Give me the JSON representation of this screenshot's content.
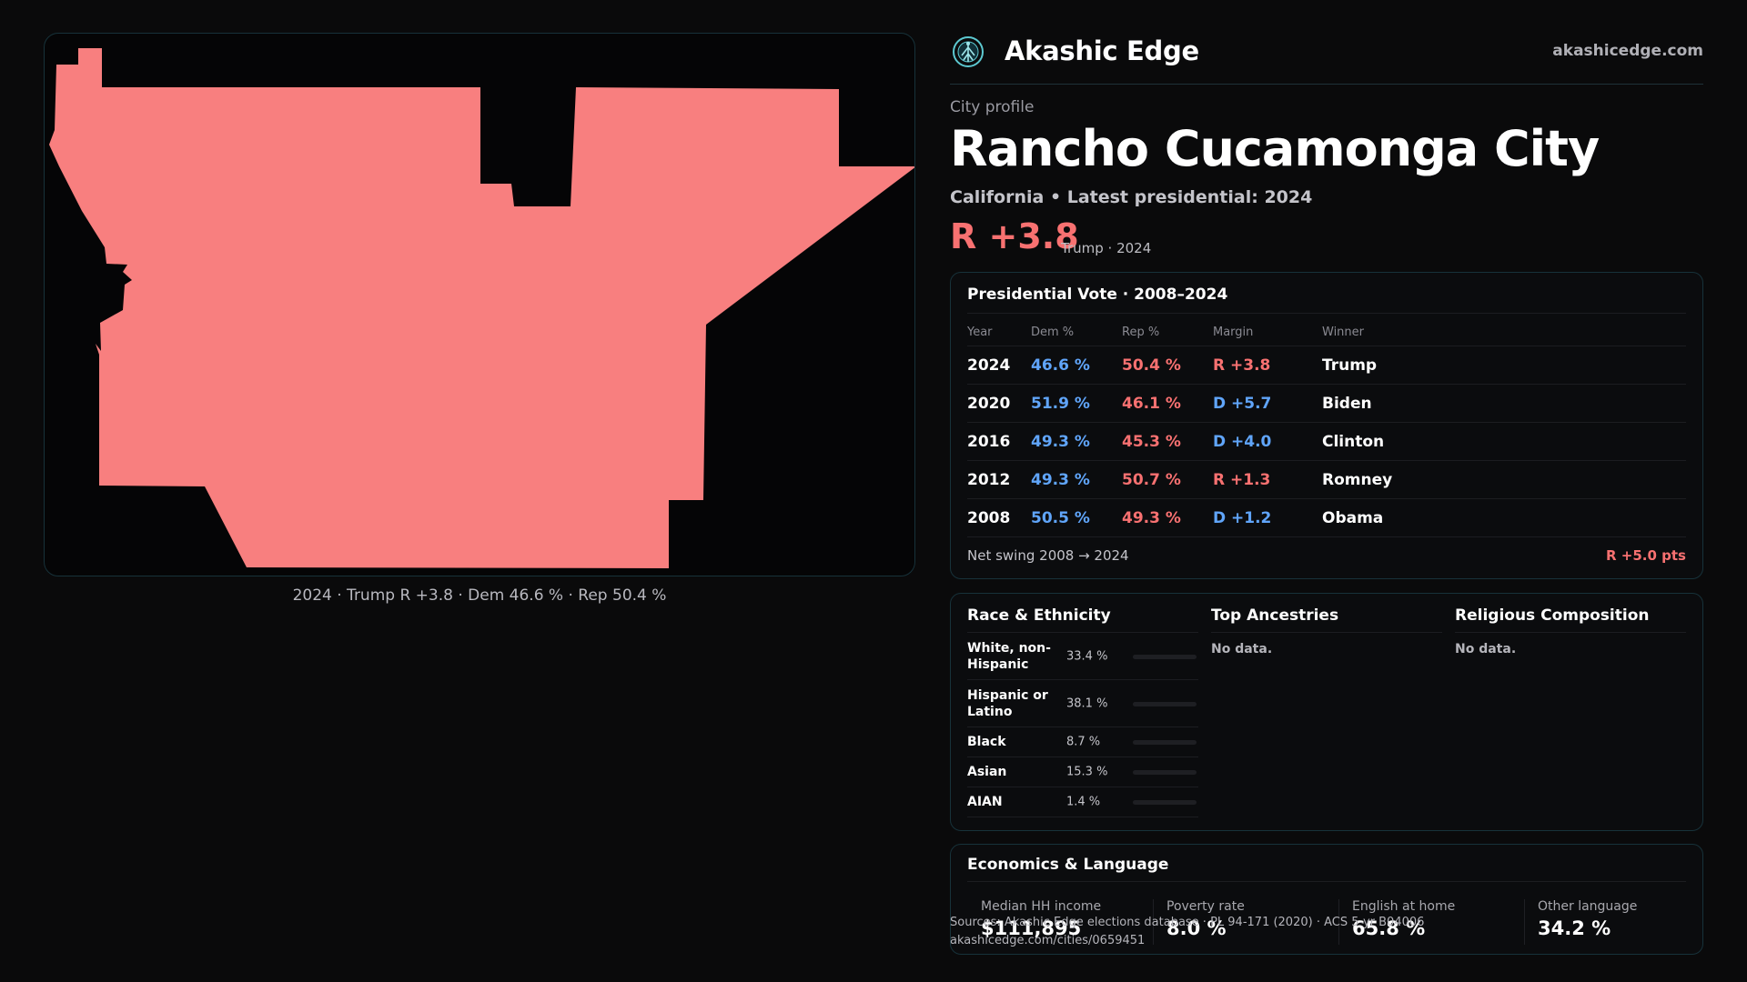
{
  "brand": {
    "name": "Akashic Edge",
    "url": "akashicedge.com",
    "logo_icon": "globe-network-icon"
  },
  "profile": {
    "eyebrow": "City profile",
    "title": "Rancho Cucamonga City",
    "subtitle": "California • Latest presidential: 2024",
    "margin": "R +3.8",
    "margin_sub": "Trump · 2024"
  },
  "map": {
    "caption": "2024 · Trump R +3.8 · Dem 46.6 % · Rep 50.4 %",
    "fill_color": "#f87f7f"
  },
  "presidential": {
    "title": "Presidential Vote · 2008–2024",
    "columns": [
      "Year",
      "Dem %",
      "Rep %",
      "Margin",
      "Winner"
    ],
    "rows": [
      {
        "year": "2024",
        "dem": "46.6 %",
        "rep": "50.4 %",
        "margin": "R +3.8",
        "party": "R",
        "winner": "Trump"
      },
      {
        "year": "2020",
        "dem": "51.9 %",
        "rep": "46.1 %",
        "margin": "D +5.7",
        "party": "D",
        "winner": "Biden"
      },
      {
        "year": "2016",
        "dem": "49.3 %",
        "rep": "45.3 %",
        "margin": "D +4.0",
        "party": "D",
        "winner": "Clinton"
      },
      {
        "year": "2012",
        "dem": "49.3 %",
        "rep": "50.7 %",
        "margin": "R +1.3",
        "party": "R",
        "winner": "Romney"
      },
      {
        "year": "2008",
        "dem": "50.5 %",
        "rep": "49.3 %",
        "margin": "D +1.2",
        "party": "D",
        "winner": "Obama"
      }
    ],
    "net_swing_label": "Net swing 2008 → 2024",
    "net_swing_value": "R +5.0 pts"
  },
  "race": {
    "title": "Race & Ethnicity",
    "rows": [
      {
        "label": "White, non-Hispanic",
        "pct": "33.4 %",
        "value": 33.4,
        "color": "#9ca3af"
      },
      {
        "label": "Hispanic or Latino",
        "pct": "38.1 %",
        "value": 38.1,
        "color": "#f59e0b"
      },
      {
        "label": "Black",
        "pct": "8.7 %",
        "value": 8.7,
        "color": "#8b7cf6"
      },
      {
        "label": "Asian",
        "pct": "15.3 %",
        "value": 15.3,
        "color": "#34d399"
      },
      {
        "label": "AIAN",
        "pct": "1.4 %",
        "value": 1.4,
        "color": "#6b7280"
      }
    ]
  },
  "ancestries": {
    "title": "Top Ancestries",
    "empty": "No data."
  },
  "religion": {
    "title": "Religious Composition",
    "empty": "No data."
  },
  "economics": {
    "title": "Economics & Language",
    "stats": [
      {
        "label": "Median HH income",
        "value": "$111,895"
      },
      {
        "label": "Poverty rate",
        "value": "8.0 %"
      },
      {
        "label": "English at home",
        "value": "65.8 %"
      },
      {
        "label": "Other language",
        "value": "34.2 %"
      }
    ]
  },
  "footer": {
    "source": "Sources: Akashic Edge elections database · PL 94-171 (2020) · ACS 5-yr B04006",
    "link": "akashicedge.com/cities/0659451"
  }
}
